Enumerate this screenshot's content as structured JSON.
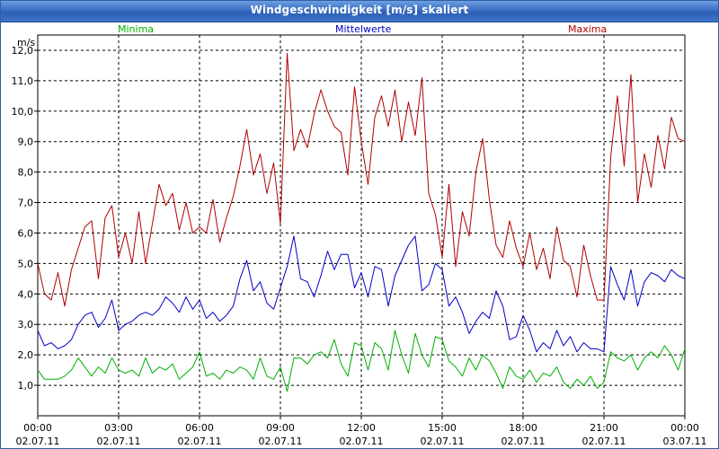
{
  "window": {
    "title": "Windgeschwindigkeit [m/s] skaliert"
  },
  "colors": {
    "minima": "#00b000",
    "mittelwerte": "#0000c8",
    "maxima": "#b00000",
    "grid": "#000000",
    "title_bg": "#3a6fc4"
  },
  "chart_data": {
    "type": "line",
    "title": "Windgeschwindigkeit [m/s] skaliert",
    "ylabel": "m/s",
    "xlabel": "",
    "ylim": [
      0,
      12.5
    ],
    "xlim": [
      0,
      24
    ],
    "grid": true,
    "yticks": [
      1,
      2,
      3,
      4,
      5,
      6,
      7,
      8,
      9,
      10,
      11,
      12
    ],
    "ytick_labels": [
      "1,0",
      "2,0",
      "3,0",
      "4,0",
      "5,0",
      "6,0",
      "7,0",
      "8,0",
      "9,0",
      "10,0",
      "11,0",
      "12,0"
    ],
    "xticks": [
      0,
      3,
      6,
      9,
      12,
      15,
      18,
      21,
      24
    ],
    "xtick_time": [
      "00:00",
      "03:00",
      "06:00",
      "09:00",
      "12:00",
      "15:00",
      "18:00",
      "21:00",
      "00:00"
    ],
    "xtick_date": [
      "02.07.11",
      "02.07.11",
      "02.07.11",
      "02.07.11",
      "02.07.11",
      "02.07.11",
      "02.07.11",
      "02.07.11",
      "03.07.11"
    ],
    "legend": [
      "Minima",
      "Mittelwerte",
      "Maxima"
    ],
    "series": [
      {
        "name": "Minima",
        "color": "#00b000",
        "x": [
          0,
          0.25,
          0.5,
          0.75,
          1,
          1.25,
          1.5,
          1.75,
          2,
          2.25,
          2.5,
          2.75,
          3,
          3.25,
          3.5,
          3.75,
          4,
          4.25,
          4.5,
          4.75,
          5,
          5.25,
          5.5,
          5.75,
          6,
          6.25,
          6.5,
          6.75,
          7,
          7.25,
          7.5,
          7.75,
          8,
          8.25,
          8.5,
          8.75,
          9,
          9.25,
          9.5,
          9.75,
          10,
          10.25,
          10.5,
          10.75,
          11,
          11.25,
          11.5,
          11.75,
          12,
          12.25,
          12.5,
          12.75,
          13,
          13.25,
          13.5,
          13.75,
          14,
          14.25,
          14.5,
          14.75,
          15,
          15.25,
          15.5,
          15.75,
          16,
          16.25,
          16.5,
          16.75,
          17,
          17.25,
          17.5,
          17.75,
          18,
          18.25,
          18.5,
          18.75,
          19,
          19.25,
          19.5,
          19.75,
          20,
          20.25,
          20.5,
          20.75,
          21,
          21.25,
          21.5,
          21.75,
          22,
          22.25,
          22.5,
          22.75,
          23,
          23.25,
          23.5,
          23.75,
          24
        ],
        "values": [
          1.5,
          1.2,
          1.2,
          1.2,
          1.3,
          1.5,
          1.9,
          1.6,
          1.3,
          1.6,
          1.4,
          1.9,
          1.5,
          1.4,
          1.5,
          1.3,
          1.9,
          1.4,
          1.6,
          1.5,
          1.7,
          1.2,
          1.4,
          1.6,
          2.1,
          1.3,
          1.4,
          1.2,
          1.5,
          1.4,
          1.6,
          1.5,
          1.2,
          1.9,
          1.3,
          1.2,
          1.6,
          0.8,
          1.9,
          1.9,
          1.7,
          2.0,
          2.1,
          1.9,
          2.5,
          1.7,
          1.3,
          2.4,
          2.3,
          1.5,
          2.4,
          2.2,
          1.5,
          2.8,
          2.0,
          1.4,
          2.7,
          2.0,
          1.6,
          2.6,
          2.5,
          1.8,
          1.6,
          1.3,
          1.9,
          1.5,
          2.0,
          1.8,
          1.4,
          0.9,
          1.6,
          1.3,
          1.2,
          1.5,
          1.1,
          1.4,
          1.3,
          1.6,
          1.1,
          0.9,
          1.2,
          1.0,
          1.3,
          0.9,
          1.1,
          2.1,
          1.9,
          1.8,
          2.0,
          1.5,
          1.9,
          2.1,
          1.9,
          2.3,
          2.0,
          1.5,
          2.2
        ]
      },
      {
        "name": "Mittelwerte",
        "color": "#0000c8",
        "x": [
          0,
          0.25,
          0.5,
          0.75,
          1,
          1.25,
          1.5,
          1.75,
          2,
          2.25,
          2.5,
          2.75,
          3,
          3.25,
          3.5,
          3.75,
          4,
          4.25,
          4.5,
          4.75,
          5,
          5.25,
          5.5,
          5.75,
          6,
          6.25,
          6.5,
          6.75,
          7,
          7.25,
          7.5,
          7.75,
          8,
          8.25,
          8.5,
          8.75,
          9,
          9.25,
          9.5,
          9.75,
          10,
          10.25,
          10.5,
          10.75,
          11,
          11.25,
          11.5,
          11.75,
          12,
          12.25,
          12.5,
          12.75,
          13,
          13.25,
          13.5,
          13.75,
          14,
          14.25,
          14.5,
          14.75,
          15,
          15.25,
          15.5,
          15.75,
          16,
          16.25,
          16.5,
          16.75,
          17,
          17.25,
          17.5,
          17.75,
          18,
          18.25,
          18.5,
          18.75,
          19,
          19.25,
          19.5,
          19.75,
          20,
          20.25,
          20.5,
          20.75,
          21,
          21.25,
          21.5,
          21.75,
          22,
          22.25,
          22.5,
          22.75,
          23,
          23.25,
          23.5,
          23.75,
          24
        ],
        "values": [
          2.8,
          2.3,
          2.4,
          2.2,
          2.3,
          2.5,
          3.0,
          3.3,
          3.4,
          2.9,
          3.2,
          3.8,
          2.8,
          3.0,
          3.1,
          3.3,
          3.4,
          3.3,
          3.5,
          3.9,
          3.7,
          3.4,
          3.9,
          3.5,
          3.8,
          3.2,
          3.4,
          3.1,
          3.3,
          3.6,
          4.5,
          5.1,
          4.1,
          4.4,
          3.7,
          3.5,
          4.2,
          4.9,
          5.9,
          4.5,
          4.4,
          3.9,
          4.6,
          5.4,
          4.8,
          5.3,
          5.3,
          4.2,
          4.7,
          3.9,
          4.9,
          4.8,
          3.6,
          4.6,
          5.1,
          5.6,
          5.9,
          4.1,
          4.3,
          5.0,
          4.8,
          3.6,
          3.9,
          3.4,
          2.7,
          3.1,
          3.4,
          3.2,
          4.1,
          3.6,
          2.5,
          2.6,
          3.3,
          2.8,
          2.1,
          2.4,
          2.2,
          2.8,
          2.3,
          2.6,
          2.1,
          2.4,
          2.2,
          2.2,
          2.1,
          4.9,
          4.3,
          3.8,
          4.8,
          3.6,
          4.4,
          4.7,
          4.6,
          4.4,
          4.8,
          4.6,
          4.5
        ]
      },
      {
        "name": "Maxima",
        "color": "#b00000",
        "x": [
          0,
          0.25,
          0.5,
          0.75,
          1,
          1.25,
          1.5,
          1.75,
          2,
          2.25,
          2.5,
          2.75,
          3,
          3.25,
          3.5,
          3.75,
          4,
          4.25,
          4.5,
          4.75,
          5,
          5.25,
          5.5,
          5.75,
          6,
          6.25,
          6.5,
          6.75,
          7,
          7.25,
          7.5,
          7.75,
          8,
          8.25,
          8.5,
          8.75,
          9,
          9.25,
          9.5,
          9.75,
          10,
          10.25,
          10.5,
          10.75,
          11,
          11.25,
          11.5,
          11.75,
          12,
          12.25,
          12.5,
          12.75,
          13,
          13.25,
          13.5,
          13.75,
          14,
          14.25,
          14.5,
          14.75,
          15,
          15.25,
          15.5,
          15.75,
          16,
          16.25,
          16.5,
          16.75,
          17,
          17.25,
          17.5,
          17.75,
          18,
          18.25,
          18.5,
          18.75,
          19,
          19.25,
          19.5,
          19.75,
          20,
          20.25,
          20.5,
          20.75,
          21,
          21.25,
          21.5,
          21.75,
          22,
          22.25,
          22.5,
          22.75,
          23,
          23.25,
          23.5,
          23.75,
          24
        ],
        "values": [
          5.0,
          4.0,
          3.8,
          4.7,
          3.6,
          4.8,
          5.5,
          6.2,
          6.4,
          4.5,
          6.5,
          6.9,
          5.2,
          6.0,
          5.0,
          6.7,
          5.0,
          6.3,
          7.6,
          6.9,
          7.3,
          6.1,
          7.0,
          6.0,
          6.2,
          6.0,
          7.1,
          5.7,
          6.5,
          7.2,
          8.2,
          9.4,
          7.9,
          8.6,
          7.3,
          8.3,
          6.3,
          11.9,
          8.7,
          9.4,
          8.8,
          9.9,
          10.7,
          10.0,
          9.5,
          9.3,
          7.9,
          10.8,
          9.0,
          7.6,
          9.8,
          10.5,
          9.5,
          10.7,
          9.0,
          10.3,
          9.2,
          11.1,
          7.3,
          6.6,
          5.2,
          7.6,
          4.9,
          6.7,
          5.9,
          8.0,
          9.1,
          7.1,
          5.6,
          5.2,
          6.4,
          5.5,
          4.9,
          6.0,
          4.8,
          5.5,
          4.5,
          6.2,
          5.1,
          4.9,
          3.9,
          5.6,
          4.6,
          3.8,
          3.8,
          8.5,
          10.5,
          8.2,
          11.2,
          7.0,
          8.6,
          7.5,
          9.2,
          8.1,
          9.8,
          9.1,
          9.0
        ]
      }
    ]
  }
}
